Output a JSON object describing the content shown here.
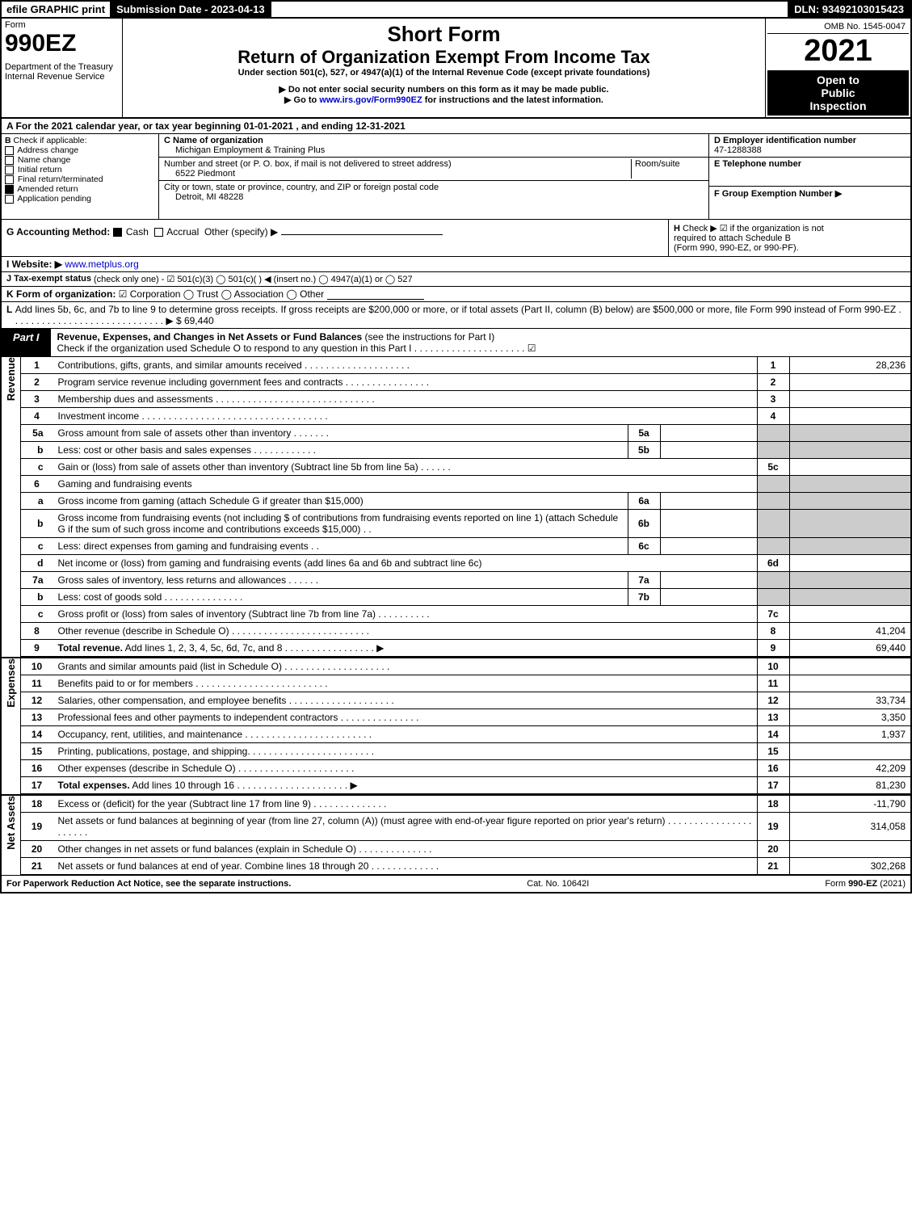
{
  "topbar": {
    "efile_label": "efile GRAPHIC print",
    "submission_label": "Submission Date - 2023-04-13",
    "dln_label": "DLN: 93492103015423"
  },
  "header": {
    "form_word": "Form",
    "form_number": "990EZ",
    "dept1": "Department of the Treasury",
    "dept2": "Internal Revenue Service",
    "short_form": "Short Form",
    "title": "Return of Organization Exempt From Income Tax",
    "subtitle": "Under section 501(c), 527, or 4947(a)(1) of the Internal Revenue Code (except private foundations)",
    "note1": "▶ Do not enter social security numbers on this form as it may be made public.",
    "note2": "▶ Go to www.irs.gov/Form990EZ for instructions and the latest information.",
    "note2_link": "www.irs.gov/Form990EZ",
    "omb": "OMB No. 1545-0047",
    "year": "2021",
    "open1": "Open to",
    "open2": "Public",
    "open3": "Inspection"
  },
  "sectionA": {
    "text": "A  For the 2021 calendar year, or tax year beginning 01-01-2021 , and ending 12-31-2021"
  },
  "sectionB": {
    "label": "B",
    "check_if": "Check if applicable:",
    "items": [
      "Address change",
      "Name change",
      "Initial return",
      "Final return/terminated",
      "Amended return",
      "Application pending"
    ],
    "checked_index": 4
  },
  "sectionC": {
    "name_label": "C Name of organization",
    "name": "Michigan Employment & Training Plus",
    "street_label": "Number and street (or P. O. box, if mail is not delivered to street address)",
    "room_label": "Room/suite",
    "street": "6522 Piedmont",
    "city_label": "City or town, state or province, country, and ZIP or foreign postal code",
    "city": "Detroit, MI  48228"
  },
  "sectionD": {
    "label": "D Employer identification number",
    "value": "47-1288388"
  },
  "sectionE": {
    "label": "E Telephone number"
  },
  "sectionF": {
    "label": "F Group Exemption Number  ▶"
  },
  "sectionG": {
    "label": "G Accounting Method:",
    "cash": "Cash",
    "accrual": "Accrual",
    "other": "Other (specify) ▶"
  },
  "sectionH": {
    "label": "H",
    "text1": "Check ▶ ☑ if the organization is not",
    "text2": "required to attach Schedule B",
    "text3": "(Form 990, 990-EZ, or 990-PF)."
  },
  "sectionI": {
    "label": "I Website: ▶",
    "value": "www.metplus.org"
  },
  "sectionJ": {
    "label": "J Tax-exempt status",
    "text": "(check only one) - ☑ 501(c)(3)  ◯ 501(c)(  ) ◀ (insert no.)  ◯ 4947(a)(1) or  ◯ 527"
  },
  "sectionK": {
    "label": "K Form of organization:",
    "text": "☑ Corporation   ◯ Trust   ◯ Association   ◯ Other"
  },
  "sectionL": {
    "label": "L",
    "text": "Add lines 5b, 6c, and 7b to line 9 to determine gross receipts. If gross receipts are $200,000 or more, or if total assets (Part II, column (B) below) are $500,000 or more, file Form 990 instead of Form 990-EZ  .  .  .  .  .  .  .  .  .  .  .  .  .  .  .  .  .  .  .  .  .  .  .  .  .  .  .  .  . ▶ $ 69,440"
  },
  "part1": {
    "tab": "Part I",
    "title": "Revenue, Expenses, and Changes in Net Assets or Fund Balances",
    "title_note": "(see the instructions for Part I)",
    "check_note": "Check if the organization used Schedule O to respond to any question in this Part I .  .  .  .  .  .  .  .  .  .  .  .  .  .  .  .  .  .  .  .  . ☑"
  },
  "side_labels": {
    "revenue": "Revenue",
    "expenses": "Expenses",
    "net_assets": "Net Assets"
  },
  "lines": [
    {
      "n": "1",
      "desc": "Contributions, gifts, grants, and similar amounts received  .  .  .  .  .  .  .  .  .  .  .  .  .  .  .  .  .  .  .  .",
      "ln": "1",
      "amt": "28,236"
    },
    {
      "n": "2",
      "desc": "Program service revenue including government fees and contracts  .  .  .  .  .  .  .  .  .  .  .  .  .  .  .  .",
      "ln": "2",
      "amt": ""
    },
    {
      "n": "3",
      "desc": "Membership dues and assessments  .  .  .  .  .  .  .  .  .  .  .  .  .  .  .  .  .  .  .  .  .  .  .  .  .  .  .  .  .  .",
      "ln": "3",
      "amt": ""
    },
    {
      "n": "4",
      "desc": "Investment income  .  .  .  .  .  .  .  .  .  .  .  .  .  .  .  .  .  .  .  .  .  .  .  .  .  .  .  .  .  .  .  .  .  .  .",
      "ln": "4",
      "amt": ""
    }
  ],
  "line5a": {
    "n": "5a",
    "desc": "Gross amount from sale of assets other than inventory  .  .  .  .  .  .  .",
    "in": "5a"
  },
  "line5b": {
    "n": "b",
    "desc": "Less: cost or other basis and sales expenses  .  .  .  .  .  .  .  .  .  .  .  .",
    "in": "5b"
  },
  "line5c": {
    "n": "c",
    "desc": "Gain or (loss) from sale of assets other than inventory (Subtract line 5b from line 5a)  .  .  .  .  .  .",
    "ln": "5c"
  },
  "line6": {
    "n": "6",
    "desc": "Gaming and fundraising events"
  },
  "line6a": {
    "n": "a",
    "desc": "Gross income from gaming (attach Schedule G if greater than $15,000)",
    "in": "6a"
  },
  "line6b": {
    "n": "b",
    "desc": "Gross income from fundraising events (not including $                           of contributions from fundraising events reported on line 1) (attach Schedule G if the sum of such gross income and contributions exceeds $15,000)     .  .",
    "in": "6b"
  },
  "line6c": {
    "n": "c",
    "desc": "Less: direct expenses from gaming and fundraising events     .  .",
    "in": "6c"
  },
  "line6d": {
    "n": "d",
    "desc": "Net income or (loss) from gaming and fundraising events (add lines 6a and 6b and subtract line 6c)",
    "ln": "6d"
  },
  "line7a": {
    "n": "7a",
    "desc": "Gross sales of inventory, less returns and allowances  .  .  .  .  .  .",
    "in": "7a"
  },
  "line7b": {
    "n": "b",
    "desc": "Less: cost of goods sold         .  .  .  .  .  .  .  .  .  .  .  .  .  .  .",
    "in": "7b"
  },
  "line7c": {
    "n": "c",
    "desc": "Gross profit or (loss) from sales of inventory (Subtract line 7b from line 7a)  .  .  .  .  .  .  .  .  .  .",
    "ln": "7c"
  },
  "line8": {
    "n": "8",
    "desc": "Other revenue (describe in Schedule O)  .  .  .  .  .  .  .  .  .  .  .  .  .  .  .  .  .  .  .  .  .  .  .  .  .  .",
    "ln": "8",
    "amt": "41,204"
  },
  "line9": {
    "n": "9",
    "desc": "Total revenue. Add lines 1, 2, 3, 4, 5c, 6d, 7c, and 8   .  .  .  .  .  .  .  .  .  .  .  .  .  .  .  .  .   ▶",
    "ln": "9",
    "amt": "69,440",
    "bold": true
  },
  "expenses_lines": [
    {
      "n": "10",
      "desc": "Grants and similar amounts paid (list in Schedule O)  .  .  .  .  .  .  .  .  .  .  .  .  .  .  .  .  .  .  .  .",
      "ln": "10",
      "amt": ""
    },
    {
      "n": "11",
      "desc": "Benefits paid to or for members        .  .  .  .  .  .  .  .  .  .  .  .  .  .  .  .  .  .  .  .  .  .  .  .  .",
      "ln": "11",
      "amt": ""
    },
    {
      "n": "12",
      "desc": "Salaries, other compensation, and employee benefits .  .  .  .  .  .  .  .  .  .  .  .  .  .  .  .  .  .  .  .",
      "ln": "12",
      "amt": "33,734"
    },
    {
      "n": "13",
      "desc": "Professional fees and other payments to independent contractors  .  .  .  .  .  .  .  .  .  .  .  .  .  .  .",
      "ln": "13",
      "amt": "3,350"
    },
    {
      "n": "14",
      "desc": "Occupancy, rent, utilities, and maintenance .  .  .  .  .  .  .  .  .  .  .  .  .  .  .  .  .  .  .  .  .  .  .  .",
      "ln": "14",
      "amt": "1,937"
    },
    {
      "n": "15",
      "desc": "Printing, publications, postage, and shipping.  .  .  .  .  .  .  .  .  .  .  .  .  .  .  .  .  .  .  .  .  .  .  .",
      "ln": "15",
      "amt": ""
    },
    {
      "n": "16",
      "desc": "Other expenses (describe in Schedule O)       .  .  .  .  .  .  .  .  .  .  .  .  .  .  .  .  .  .  .  .  .  .",
      "ln": "16",
      "amt": "42,209"
    },
    {
      "n": "17",
      "desc": "Total expenses. Add lines 10 through 16      .  .  .  .  .  .  .  .  .  .  .  .  .  .  .  .  .  .  .  .  .   ▶",
      "ln": "17",
      "amt": "81,230",
      "bold": true
    }
  ],
  "net_lines": [
    {
      "n": "18",
      "desc": "Excess or (deficit) for the year (Subtract line 17 from line 9)        .  .  .  .  .  .  .  .  .  .  .  .  .  .",
      "ln": "18",
      "amt": "-11,790"
    },
    {
      "n": "19",
      "desc": "Net assets or fund balances at beginning of year (from line 27, column (A)) (must agree with end-of-year figure reported on prior year's return) .  .  .  .  .  .  .  .  .  .  .  .  .  .  .  .  .  .  .  .  .  .",
      "ln": "19",
      "amt": "314,058"
    },
    {
      "n": "20",
      "desc": "Other changes in net assets or fund balances (explain in Schedule O) .  .  .  .  .  .  .  .  .  .  .  .  .  .",
      "ln": "20",
      "amt": ""
    },
    {
      "n": "21",
      "desc": "Net assets or fund balances at end of year. Combine lines 18 through 20 .  .  .  .  .  .  .  .  .  .  .  .  .",
      "ln": "21",
      "amt": "302,268"
    }
  ],
  "footer": {
    "left": "For Paperwork Reduction Act Notice, see the separate instructions.",
    "center": "Cat. No. 10642I",
    "right_prefix": "Form ",
    "right_form": "990-EZ",
    "right_year": " (2021)"
  }
}
